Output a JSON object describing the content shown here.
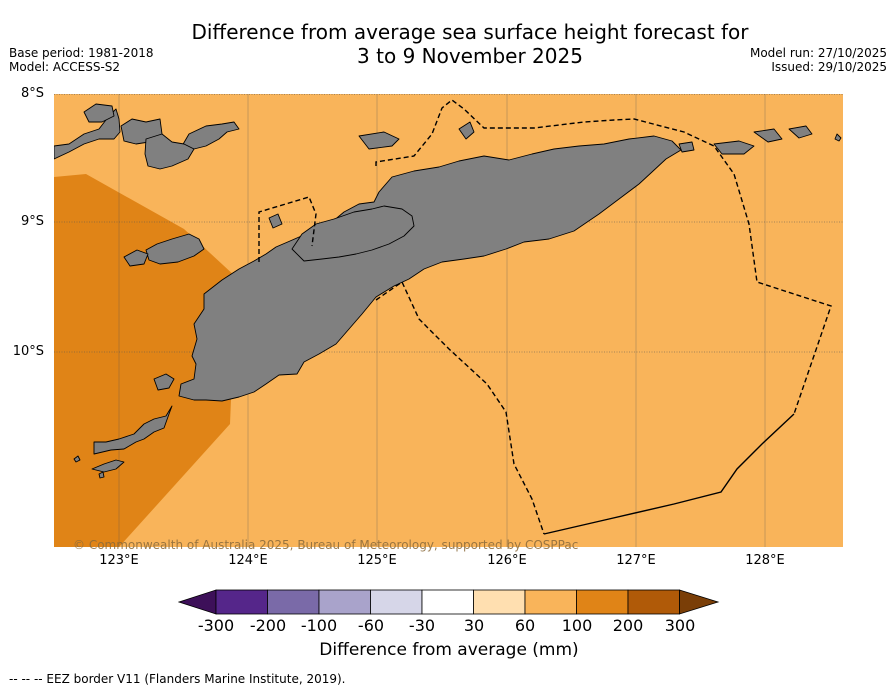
{
  "title": {
    "line1": "Difference from average sea surface height forecast for",
    "line2": "3 to 9 November 2025"
  },
  "meta_left": {
    "base_period": "Base period: 1981-2018",
    "model": "Model: ACCESS-S2"
  },
  "meta_right": {
    "model_run": "Model run: 27/10/2025",
    "issued": "Issued: 29/10/2025"
  },
  "map": {
    "lat_labels": [
      "8°S",
      "9°S",
      "10°S"
    ],
    "lon_labels": [
      "123°E",
      "124°E",
      "125°E",
      "126°E",
      "127°E",
      "128°E"
    ],
    "copyright": "© Commonwealth of Australia 2025, Bureau of Meteorology, supported by COSPPac",
    "colors": {
      "ocean_60_100": "#f9b45a",
      "ocean_100_200": "#e08417",
      "land": "#808080",
      "coast": "#000000"
    }
  },
  "colorbar": {
    "title": "Difference from average (mm)",
    "ticks": [
      "-300",
      "-200",
      "-100",
      "-60",
      "-30",
      "30",
      "60",
      "100",
      "200",
      "300"
    ],
    "colors": [
      "#3d1059",
      "#55268a",
      "#7a6aa8",
      "#a9a3cb",
      "#d6d6e8",
      "#ffffff",
      "#ffdfb0",
      "#f9b45a",
      "#e08417",
      "#b05a08",
      "#7a3e07"
    ]
  },
  "footnote": "--  --  -- EEZ border V11 (Flanders Marine Institute, 2019)."
}
